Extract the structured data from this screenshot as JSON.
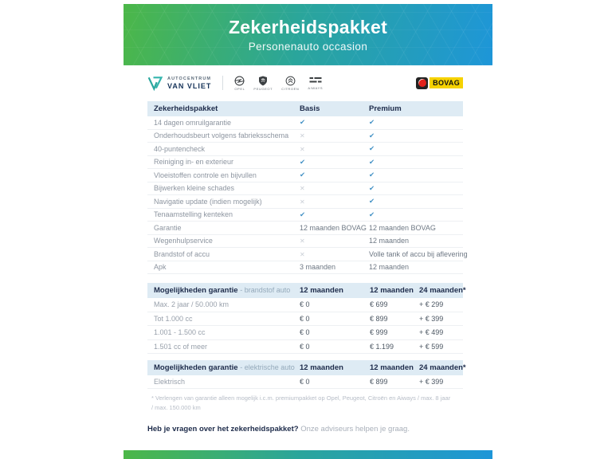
{
  "header": {
    "title": "Zekerheidspakket",
    "subtitle": "Personenauto occasion"
  },
  "logos": {
    "dealer_top": "AUTOCENTRUM",
    "dealer_bottom": "VAN VLIET",
    "brands": [
      "Opel",
      "Peugeot",
      "Citroën",
      "Aiways"
    ],
    "bovag": "BOVAG"
  },
  "package_table": {
    "headers": [
      "Zekerheidspakket",
      "Basis",
      "Premium"
    ],
    "rows": [
      {
        "label": "14 dagen omruilgarantie",
        "basis": "check",
        "premium": "check"
      },
      {
        "label": "Onderhoudsbeurt volgens fabrieksschema",
        "basis": "cross",
        "premium": "check"
      },
      {
        "label": "40-puntencheck",
        "basis": "cross",
        "premium": "check"
      },
      {
        "label": "Reiniging in- en exterieur",
        "basis": "check",
        "premium": "check"
      },
      {
        "label": "Vloeistoffen controle en bijvullen",
        "basis": "check",
        "premium": "check"
      },
      {
        "label": "Bijwerken kleine schades",
        "basis": "cross",
        "premium": "check"
      },
      {
        "label": "Navigatie update (indien mogelijk)",
        "basis": "cross",
        "premium": "check"
      },
      {
        "label": "Tenaamstelling kenteken",
        "basis": "check",
        "premium": "check"
      },
      {
        "label": "Garantie",
        "basis": "12 maanden BOVAG",
        "premium": "12 maanden BOVAG"
      },
      {
        "label": "Wegenhulpservice",
        "basis": "cross",
        "premium": "12 maanden"
      },
      {
        "label": "Brandstof of accu",
        "basis": "cross",
        "premium": "Volle tank of accu bij aflevering"
      },
      {
        "label": "Apk",
        "basis": "3 maanden",
        "premium": "12 maanden"
      }
    ]
  },
  "fuel_table": {
    "title_bold": "Mogelijkheden garantie",
    "title_light": "- brandstof auto",
    "headers": [
      "12 maanden",
      "12 maanden",
      "24 maanden*"
    ],
    "rows": [
      {
        "label": "Max. 2 jaar / 50.000 km",
        "c1": "€ 0",
        "c2": "€ 699",
        "c3": "+ € 299"
      },
      {
        "label": "Tot 1.000 cc",
        "c1": "€ 0",
        "c2": "€ 899",
        "c3": "+ € 399"
      },
      {
        "label": "1.001 - 1.500 cc",
        "c1": "€ 0",
        "c2": "€ 999",
        "c3": "+ € 499"
      },
      {
        "label": "1.501 cc of meer",
        "c1": "€ 0",
        "c2": "€ 1.199",
        "c3": "+ € 599"
      }
    ]
  },
  "electric_table": {
    "title_bold": "Mogelijkheden garantie",
    "title_light": "- elektrische auto",
    "headers": [
      "12 maanden",
      "12 maanden",
      "24 maanden*"
    ],
    "rows": [
      {
        "label": "Elektrisch",
        "c1": "€ 0",
        "c2": "€ 899",
        "c3": "+ € 399"
      }
    ]
  },
  "footnote": "* Verlengen van garantie alleen mogelijk i.c.m. premiumpakket op Opel, Peugeot, Citroën en Aiways / max. 8 jaar / max. 150.000 km",
  "footer": {
    "question_bold": "Heb je vragen over het zekerheidspakket?",
    "question_light": "Onze adviseurs helpen je graag."
  },
  "colors": {
    "gradient_green": "#4cb748",
    "gradient_blue": "#1e96d8",
    "table_header_bg": "#deebf4",
    "check_blue": "#4291c5",
    "cross_gray": "#c9ced6",
    "navy": "#1d2b4a",
    "bovag_yellow": "#f6d200",
    "bovag_red": "#e2231a"
  }
}
